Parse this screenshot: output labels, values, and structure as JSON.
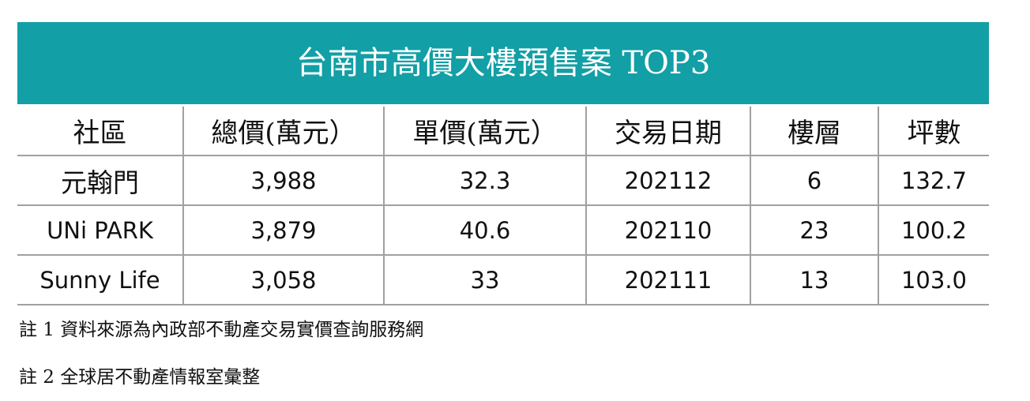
{
  "title": "台南市高價大樓預售案 TOP3",
  "table": {
    "header": [
      "社區",
      "總價(萬元）",
      "單價(萬元）",
      "交易日期",
      "樓層",
      "坪數"
    ],
    "rows": [
      [
        "元翰門",
        "3,988",
        "32.3",
        "202112",
        "6",
        "132.7"
      ],
      [
        "UNi PARK",
        "3,879",
        "40.6",
        "202110",
        "23",
        "100.2"
      ],
      [
        "Sunny Life",
        "3,058",
        "33",
        "202111",
        "13",
        "103.0"
      ]
    ]
  },
  "notes": [
    "註 1 資料來源為內政部不動產交易實價查詢服務網",
    "註 2 全球居不動產情報室彙整"
  ]
}
